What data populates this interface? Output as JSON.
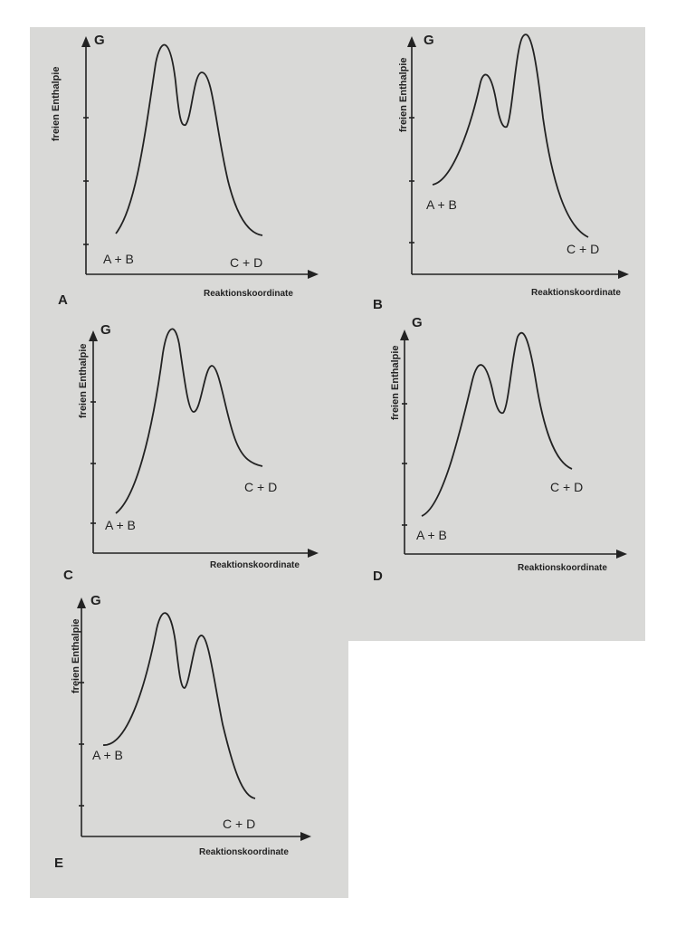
{
  "colors": {
    "paper": "#d9d9d7",
    "ink": "#222222",
    "page": "#ffffff"
  },
  "panels": [
    {
      "id": "A",
      "letter": "A",
      "axis_y": "G",
      "axis_y_title": "freien Enthalpie",
      "axis_x_title": "Reaktionskoordinate",
      "reactants": "A + B",
      "products": "C + D",
      "profile": "first barrier higher; products lower than reactants"
    },
    {
      "id": "B",
      "letter": "B",
      "axis_y": "G",
      "axis_y_title": "freien Enthalpie",
      "axis_x_title": "Reaktionskoordinate",
      "reactants": "A + B",
      "products": "C + D",
      "profile": "second barrier higher; products lower than reactants"
    },
    {
      "id": "C",
      "letter": "C",
      "axis_y": "G",
      "axis_y_title": "freien Enthalpie",
      "axis_x_title": "Reaktionskoordinate",
      "reactants": "A + B",
      "products": "C + D",
      "profile": "first barrier higher; products higher than reactants"
    },
    {
      "id": "D",
      "letter": "D",
      "axis_y": "G",
      "axis_y_title": "freien Enthalpie",
      "axis_x_title": "Reaktionskoordinate",
      "reactants": "A + B",
      "products": "C + D",
      "profile": "second barrier higher; products higher than reactants"
    },
    {
      "id": "E",
      "letter": "E",
      "axis_y": "G",
      "axis_y_title": "freien Enthalpie",
      "axis_x_title": "Reaktionskoordinate",
      "reactants": "A + B",
      "products": "C + D",
      "profile": "first barrier higher; products lower than reactants"
    }
  ]
}
